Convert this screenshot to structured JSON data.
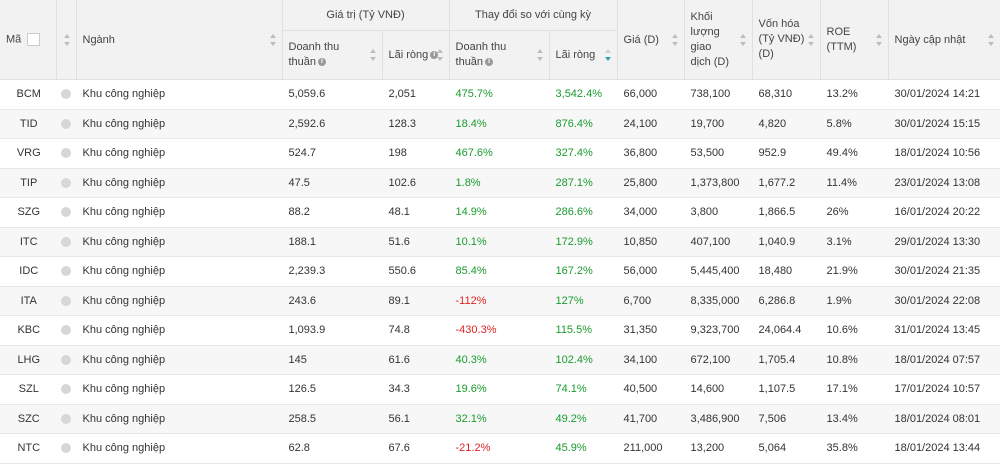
{
  "headers": {
    "ma": "Mã",
    "nganh": "Ngành",
    "gia_tri": "Giá trị (Tỷ VNĐ)",
    "thay_doi": "Thay đổi so với cùng kỳ",
    "doanh_thu_1": "Doanh thu",
    "doanh_thu_2": "thuần",
    "lai_rong": "Lãi ròng",
    "gia": "Giá (D)",
    "kl_1": "Khối",
    "kl_2": "lượng",
    "kl_3": "giao",
    "kl_4": "dịch (D)",
    "von_hoa_1": "Vốn hóa",
    "von_hoa_2": "(Tỷ VNĐ)",
    "von_hoa_3": "(D)",
    "roe_1": "ROE",
    "roe_2": "(TTM)",
    "ngay": "Ngày cập nhật"
  },
  "rows": [
    {
      "code": "BCM",
      "industry": "Khu công nghiệp",
      "revenue": "5,059.6",
      "profit": "2,051",
      "rev_chg": "475.7%",
      "prof_chg": "3,542.4%",
      "price": "66,000",
      "volume": "738,100",
      "cap": "68,310",
      "roe": "13.2%",
      "date": "30/01/2024 14:21",
      "rev_sign": "pos",
      "prof_sign": "pos"
    },
    {
      "code": "TID",
      "industry": "Khu công nghiệp",
      "revenue": "2,592.6",
      "profit": "128.3",
      "rev_chg": "18.4%",
      "prof_chg": "876.4%",
      "price": "24,100",
      "volume": "19,700",
      "cap": "4,820",
      "roe": "5.8%",
      "date": "30/01/2024 15:15",
      "rev_sign": "pos",
      "prof_sign": "pos"
    },
    {
      "code": "VRG",
      "industry": "Khu công nghiệp",
      "revenue": "524.7",
      "profit": "198",
      "rev_chg": "467.6%",
      "prof_chg": "327.4%",
      "price": "36,800",
      "volume": "53,500",
      "cap": "952.9",
      "roe": "49.4%",
      "date": "18/01/2024 10:56",
      "rev_sign": "pos",
      "prof_sign": "pos"
    },
    {
      "code": "TIP",
      "industry": "Khu công nghiệp",
      "revenue": "47.5",
      "profit": "102.6",
      "rev_chg": "1.8%",
      "prof_chg": "287.1%",
      "price": "25,800",
      "volume": "1,373,800",
      "cap": "1,677.2",
      "roe": "11.4%",
      "date": "23/01/2024 13:08",
      "rev_sign": "pos",
      "prof_sign": "pos"
    },
    {
      "code": "SZG",
      "industry": "Khu công nghiệp",
      "revenue": "88.2",
      "profit": "48.1",
      "rev_chg": "14.9%",
      "prof_chg": "286.6%",
      "price": "34,000",
      "volume": "3,800",
      "cap": "1,866.5",
      "roe": "26%",
      "date": "16/01/2024 20:22",
      "rev_sign": "pos",
      "prof_sign": "pos"
    },
    {
      "code": "ITC",
      "industry": "Khu công nghiệp",
      "revenue": "188.1",
      "profit": "51.6",
      "rev_chg": "10.1%",
      "prof_chg": "172.9%",
      "price": "10,850",
      "volume": "407,100",
      "cap": "1,040.9",
      "roe": "3.1%",
      "date": "29/01/2024 13:30",
      "rev_sign": "pos",
      "prof_sign": "pos"
    },
    {
      "code": "IDC",
      "industry": "Khu công nghiệp",
      "revenue": "2,239.3",
      "profit": "550.6",
      "rev_chg": "85.4%",
      "prof_chg": "167.2%",
      "price": "56,000",
      "volume": "5,445,400",
      "cap": "18,480",
      "roe": "21.9%",
      "date": "30/01/2024 21:35",
      "rev_sign": "pos",
      "prof_sign": "pos"
    },
    {
      "code": "ITA",
      "industry": "Khu công nghiệp",
      "revenue": "243.6",
      "profit": "89.1",
      "rev_chg": "-112%",
      "prof_chg": "127%",
      "price": "6,700",
      "volume": "8,335,000",
      "cap": "6,286.8",
      "roe": "1.9%",
      "date": "30/01/2024 22:08",
      "rev_sign": "neg",
      "prof_sign": "pos"
    },
    {
      "code": "KBC",
      "industry": "Khu công nghiệp",
      "revenue": "1,093.9",
      "profit": "74.8",
      "rev_chg": "-430.3%",
      "prof_chg": "115.5%",
      "price": "31,350",
      "volume": "9,323,700",
      "cap": "24,064.4",
      "roe": "10.6%",
      "date": "31/01/2024 13:45",
      "rev_sign": "neg",
      "prof_sign": "pos"
    },
    {
      "code": "LHG",
      "industry": "Khu công nghiệp",
      "revenue": "145",
      "profit": "61.6",
      "rev_chg": "40.3%",
      "prof_chg": "102.4%",
      "price": "34,100",
      "volume": "672,100",
      "cap": "1,705.4",
      "roe": "10.8%",
      "date": "18/01/2024 07:57",
      "rev_sign": "pos",
      "prof_sign": "pos"
    },
    {
      "code": "SZL",
      "industry": "Khu công nghiệp",
      "revenue": "126.5",
      "profit": "34.3",
      "rev_chg": "19.6%",
      "prof_chg": "74.1%",
      "price": "40,500",
      "volume": "14,600",
      "cap": "1,107.5",
      "roe": "17.1%",
      "date": "17/01/2024 10:57",
      "rev_sign": "pos",
      "prof_sign": "pos"
    },
    {
      "code": "SZC",
      "industry": "Khu công nghiệp",
      "revenue": "258.5",
      "profit": "56.1",
      "rev_chg": "32.1%",
      "prof_chg": "49.2%",
      "price": "41,700",
      "volume": "3,486,900",
      "cap": "7,506",
      "roe": "13.4%",
      "date": "18/01/2024 08:01",
      "rev_sign": "pos",
      "prof_sign": "pos"
    },
    {
      "code": "NTC",
      "industry": "Khu công nghiệp",
      "revenue": "62.8",
      "profit": "67.6",
      "rev_chg": "-21.2%",
      "prof_chg": "45.9%",
      "price": "211,000",
      "volume": "13,200",
      "cap": "5,064",
      "roe": "35.8%",
      "date": "18/01/2024 13:44",
      "rev_sign": "neg",
      "prof_sign": "pos"
    }
  ],
  "colors": {
    "positive": "#1a9b2f",
    "negative": "#e02424",
    "header_bg": "#f2f2f2",
    "sort_active": "#2aa5a5"
  }
}
